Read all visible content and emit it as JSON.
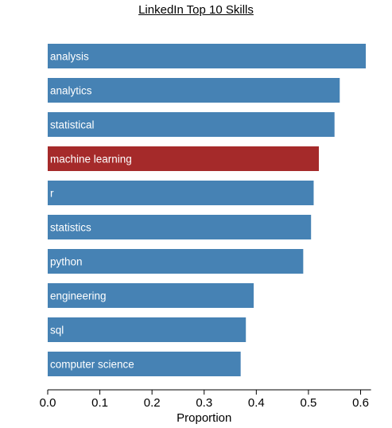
{
  "chart_data": {
    "type": "bar",
    "orientation": "horizontal",
    "title": "LinkedIn Top 10 Skills",
    "xlabel": "Proportion",
    "ylabel": "",
    "xlim": [
      0,
      0.62
    ],
    "x_ticks": [
      "0.0",
      "0.1",
      "0.2",
      "0.3",
      "0.4",
      "0.5",
      "0.6"
    ],
    "grid": false,
    "categories": [
      "analysis",
      "analytics",
      "statistical",
      "machine learning",
      "r",
      "statistics",
      "python",
      "engineering",
      "sql",
      "computer science"
    ],
    "values": [
      0.61,
      0.56,
      0.55,
      0.52,
      0.51,
      0.505,
      0.49,
      0.395,
      0.38,
      0.37
    ],
    "highlight": "machine learning",
    "colors": {
      "bar": "#4682b4",
      "highlight": "#a52a2a"
    }
  }
}
